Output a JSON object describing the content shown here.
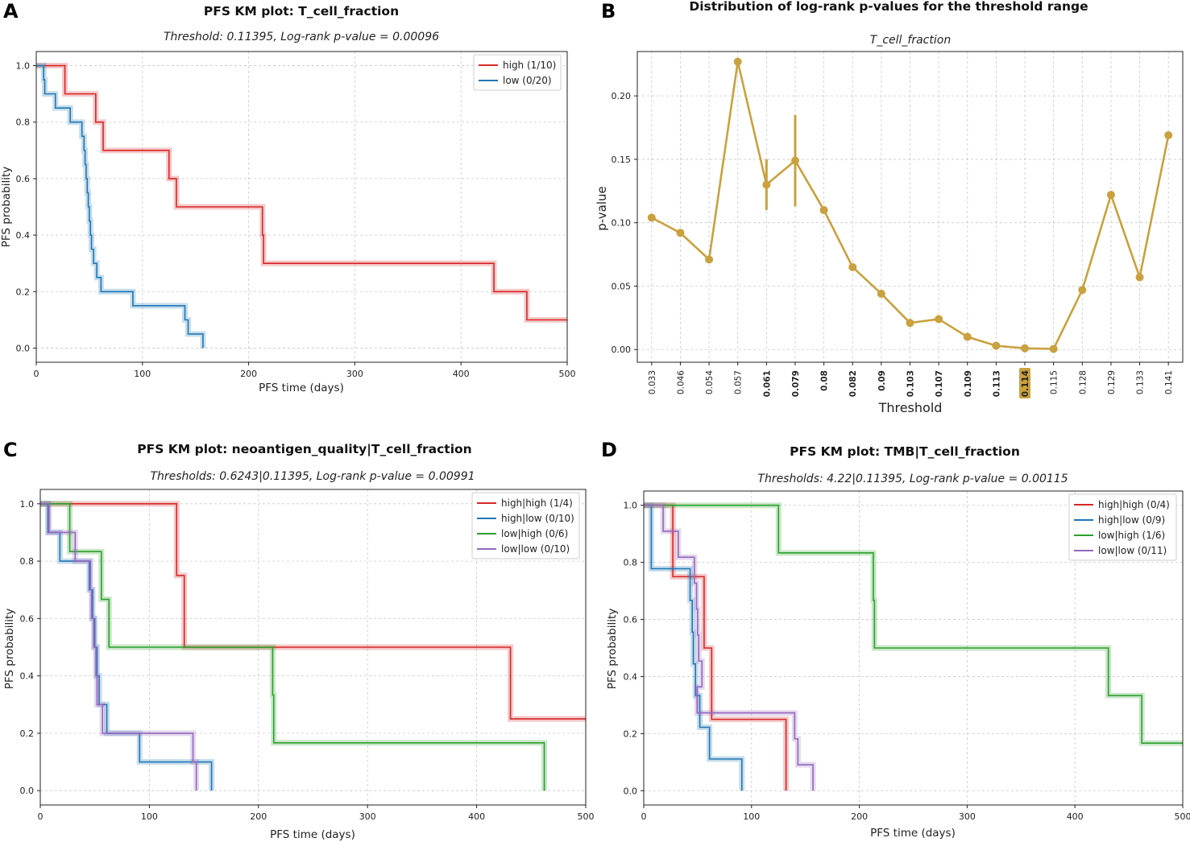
{
  "colors": {
    "high": "#d62728",
    "low": "#1f77b4",
    "red": "#d62728",
    "blue": "#1f77b4",
    "green": "#2ca02c",
    "purple": "#9467bd",
    "gold": "#c9a13e",
    "grid": "#c8c8c8",
    "axis": "#222222"
  },
  "chart_data": [
    {
      "id": "A",
      "panel_letter": "A",
      "type": "line",
      "title": "PFS KM plot: T_cell_fraction",
      "subtitle": "Threshold: 0.11395, Log-rank p-value = 0.00096",
      "xlabel": "PFS time (days)",
      "ylabel": "PFS probability",
      "xlim": [
        0,
        500
      ],
      "ylim": [
        -0.05,
        1.05
      ],
      "xticks": [
        0,
        100,
        200,
        300,
        400,
        500
      ],
      "yticks": [
        "0.0",
        "0.2",
        "0.4",
        "0.6",
        "0.8",
        "1.0"
      ],
      "legend_position": "top-right",
      "series": [
        {
          "name": "high (1/10)",
          "color_key": "high",
          "steps": [
            [
              0,
              1.0
            ],
            [
              27,
              0.9
            ],
            [
              56,
              0.8
            ],
            [
              63,
              0.7
            ],
            [
              125,
              0.6
            ],
            [
              132,
              0.5
            ],
            [
              213,
              0.4
            ],
            [
              214,
              0.3
            ],
            [
              431,
              0.2
            ],
            [
              462,
              0.1
            ],
            [
              500,
              0.1
            ]
          ]
        },
        {
          "name": "low (0/20)",
          "color_key": "low",
          "steps": [
            [
              0,
              1.0
            ],
            [
              7,
              0.95
            ],
            [
              8,
              0.9
            ],
            [
              18,
              0.85
            ],
            [
              32,
              0.8
            ],
            [
              43,
              0.75
            ],
            [
              45,
              0.7
            ],
            [
              46,
              0.65
            ],
            [
              47,
              0.6
            ],
            [
              48,
              0.55
            ],
            [
              49,
              0.5
            ],
            [
              50,
              0.45
            ],
            [
              51,
              0.4
            ],
            [
              52,
              0.35
            ],
            [
              54,
              0.3
            ],
            [
              57,
              0.25
            ],
            [
              61,
              0.2
            ],
            [
              91,
              0.15
            ],
            [
              140,
              0.1
            ],
            [
              143,
              0.05
            ],
            [
              157,
              0.0
            ]
          ]
        }
      ]
    },
    {
      "id": "B",
      "panel_letter": "B",
      "type": "line",
      "title": "Distribution of log-rank p-values for the threshold range",
      "subtitle": "T_cell_fraction",
      "xlabel": "Threshold",
      "ylabel": "p-value",
      "ylim": [
        -0.01,
        0.235
      ],
      "yticks": [
        "0.00",
        "0.05",
        "0.10",
        "0.15",
        "0.20"
      ],
      "categories": [
        "0.033",
        "0.046",
        "0.054",
        "0.057",
        "0.061",
        "0.079",
        "0.08",
        "0.082",
        "0.09",
        "0.103",
        "0.107",
        "0.109",
        "0.113",
        "0.114",
        "0.115",
        "0.128",
        "0.129",
        "0.133",
        "0.141"
      ],
      "bold_ticks": [
        "0.061",
        "0.079",
        "0.08",
        "0.082",
        "0.09",
        "0.103",
        "0.107",
        "0.109",
        "0.113",
        "0.114"
      ],
      "highlight_tick": "0.114",
      "values": [
        0.104,
        0.092,
        0.071,
        0.227,
        0.13,
        0.149,
        0.11,
        0.065,
        0.044,
        0.021,
        0.024,
        0.01,
        0.003,
        0.001,
        0.0005,
        0.047,
        0.122,
        0.057,
        0.169
      ],
      "error_bars": [
        {
          "category": "0.061",
          "low": 0.11,
          "high": 0.15
        },
        {
          "category": "0.079",
          "low": 0.113,
          "high": 0.185
        }
      ]
    },
    {
      "id": "C",
      "panel_letter": "C",
      "type": "line",
      "title": "PFS KM plot: neoantigen_quality|T_cell_fraction",
      "subtitle": "Thresholds: 0.6243|0.11395, Log-rank p-value = 0.00991",
      "xlabel": "PFS time (days)",
      "ylabel": "PFS probability",
      "xlim": [
        0,
        500
      ],
      "ylim": [
        -0.05,
        1.05
      ],
      "xticks": [
        0,
        100,
        200,
        300,
        400,
        500
      ],
      "yticks": [
        "0.0",
        "0.2",
        "0.4",
        "0.6",
        "0.8",
        "1.0"
      ],
      "legend_position": "top-right",
      "series": [
        {
          "name": "high|high (1/4)",
          "color_key": "red",
          "steps": [
            [
              0,
              1.0
            ],
            [
              125,
              0.75
            ],
            [
              132,
              0.5
            ],
            [
              431,
              0.25
            ],
            [
              500,
              0.25
            ]
          ]
        },
        {
          "name": "high|low (0/10)",
          "color_key": "blue",
          "steps": [
            [
              0,
              1.0
            ],
            [
              7,
              0.9
            ],
            [
              18,
              0.8
            ],
            [
              45,
              0.7
            ],
            [
              48,
              0.6
            ],
            [
              50,
              0.5
            ],
            [
              52,
              0.4
            ],
            [
              54,
              0.3
            ],
            [
              61,
              0.2
            ],
            [
              91,
              0.1
            ],
            [
              157,
              0.0
            ]
          ]
        },
        {
          "name": "low|high (0/6)",
          "color_key": "green",
          "steps": [
            [
              0,
              1.0
            ],
            [
              27,
              0.8333
            ],
            [
              56,
              0.6667
            ],
            [
              63,
              0.5
            ],
            [
              213,
              0.3333
            ],
            [
              214,
              0.1667
            ],
            [
              462,
              0.0
            ]
          ]
        },
        {
          "name": "low|low (0/10)",
          "color_key": "purple",
          "steps": [
            [
              0,
              1.0
            ],
            [
              8,
              0.9
            ],
            [
              32,
              0.8
            ],
            [
              46,
              0.7
            ],
            [
              47,
              0.6
            ],
            [
              49,
              0.5
            ],
            [
              51,
              0.4
            ],
            [
              52,
              0.3
            ],
            [
              57,
              0.2
            ],
            [
              140,
              0.1
            ],
            [
              143,
              0.0
            ]
          ]
        }
      ]
    },
    {
      "id": "D",
      "panel_letter": "D",
      "type": "line",
      "title": "PFS KM plot: TMB|T_cell_fraction",
      "subtitle": "Thresholds: 4.22|0.11395, Log-rank p-value = 0.00115",
      "xlabel": "PFS time (days)",
      "ylabel": "PFS probability",
      "xlim": [
        0,
        500
      ],
      "ylim": [
        -0.05,
        1.05
      ],
      "xticks": [
        0,
        100,
        200,
        300,
        400,
        500
      ],
      "yticks": [
        "0.0",
        "0.2",
        "0.4",
        "0.6",
        "0.8",
        "1.0"
      ],
      "legend_position": "top-right",
      "series": [
        {
          "name": "high|high (0/4)",
          "color_key": "red",
          "steps": [
            [
              0,
              1.0
            ],
            [
              27,
              0.75
            ],
            [
              56,
              0.5
            ],
            [
              63,
              0.25
            ],
            [
              132,
              0.0
            ]
          ]
        },
        {
          "name": "high|low (0/9)",
          "color_key": "blue",
          "steps": [
            [
              0,
              1.0
            ],
            [
              7,
              0.7778
            ],
            [
              43,
              0.6667
            ],
            [
              45,
              0.5556
            ],
            [
              46,
              0.4444
            ],
            [
              48,
              0.3333
            ],
            [
              52,
              0.2222
            ],
            [
              61,
              0.1111
            ],
            [
              91,
              0.0
            ]
          ]
        },
        {
          "name": "low|high (1/6)",
          "color_key": "green",
          "steps": [
            [
              0,
              1.0
            ],
            [
              125,
              0.8333
            ],
            [
              213,
              0.6667
            ],
            [
              214,
              0.5
            ],
            [
              431,
              0.3333
            ],
            [
              462,
              0.1667
            ],
            [
              500,
              0.1667
            ]
          ]
        },
        {
          "name": "low|low (0/11)",
          "color_key": "purple",
          "steps": [
            [
              0,
              1.0
            ],
            [
              18,
              0.9091
            ],
            [
              32,
              0.8182
            ],
            [
              47,
              0.7273
            ],
            [
              49,
              0.6364
            ],
            [
              50,
              0.5455
            ],
            [
              51,
              0.4545
            ],
            [
              54,
              0.3636
            ],
            [
              49.5,
              0.2727
            ],
            [
              140,
              0.1818
            ],
            [
              143,
              0.0909
            ],
            [
              157,
              0.0
            ]
          ]
        }
      ]
    }
  ]
}
